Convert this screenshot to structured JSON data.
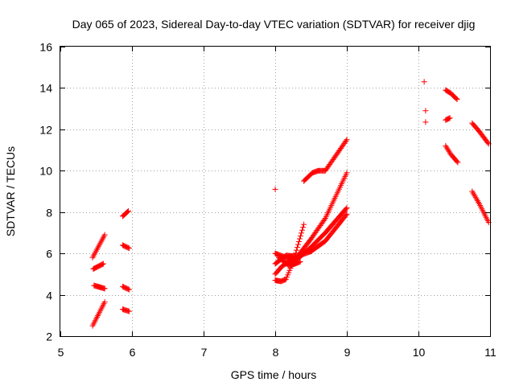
{
  "chart_data": {
    "type": "scatter",
    "title": "Day 065 of 2023, Sidereal Day-to-day VTEC variation (SDTVAR) for receiver djig",
    "xlabel": "GPS time / hours",
    "ylabel": "SDTVAR / TECUs",
    "xlim": [
      5,
      11
    ],
    "ylim": [
      2,
      16
    ],
    "x_ticks": [
      5,
      6,
      7,
      8,
      9,
      10,
      11
    ],
    "y_ticks": [
      2,
      4,
      6,
      8,
      10,
      12,
      14,
      16
    ],
    "x_tick_labels": [
      "5",
      "6",
      "7",
      "8",
      "9",
      "10",
      "11"
    ],
    "y_tick_labels": [
      "2",
      "4",
      "6",
      "8",
      "10",
      "12",
      "14",
      "16"
    ],
    "grid": true,
    "marker": "+",
    "marker_color": "#ff0000",
    "segments": [
      {
        "x": [
          5.45,
          5.62
        ],
        "y": [
          5.8,
          6.9
        ]
      },
      {
        "x": [
          5.46,
          5.6
        ],
        "y": [
          5.25,
          5.5
        ]
      },
      {
        "x": [
          5.47,
          5.62
        ],
        "y": [
          4.45,
          4.3
        ]
      },
      {
        "x": [
          5.45,
          5.62
        ],
        "y": [
          2.5,
          3.65
        ]
      },
      {
        "x": [
          5.87,
          5.95
        ],
        "y": [
          7.8,
          8.05
        ]
      },
      {
        "x": [
          5.87,
          5.96
        ],
        "y": [
          6.4,
          6.25
        ]
      },
      {
        "x": [
          5.87,
          5.96
        ],
        "y": [
          4.4,
          4.25
        ]
      },
      {
        "x": [
          5.87,
          5.96
        ],
        "y": [
          3.3,
          3.2
        ]
      },
      {
        "x": [
          8.0,
          8.0
        ],
        "y": [
          9.1,
          9.1
        ]
      },
      {
        "x": [
          8.4,
          8.52,
          8.6,
          8.7,
          9.0
        ],
        "y": [
          9.5,
          9.9,
          10.0,
          10.0,
          11.5
        ]
      },
      {
        "x": [
          8.0,
          8.1,
          8.2,
          8.3,
          8.5,
          8.7,
          9.0
        ],
        "y": [
          5.0,
          5.4,
          5.6,
          5.8,
          6.7,
          7.7,
          9.9
        ]
      },
      {
        "x": [
          8.0,
          8.15,
          8.3,
          8.5,
          8.7,
          9.0
        ],
        "y": [
          6.0,
          5.8,
          5.7,
          6.3,
          7.0,
          8.2
        ]
      },
      {
        "x": [
          8.0,
          8.15,
          8.3,
          8.5,
          8.7,
          9.0
        ],
        "y": [
          5.5,
          5.9,
          5.85,
          6.1,
          6.6,
          7.9
        ]
      },
      {
        "x": [
          8.0,
          8.08,
          8.15,
          8.25,
          8.4
        ],
        "y": [
          4.7,
          4.65,
          4.75,
          5.6,
          7.4
        ]
      },
      {
        "x": [
          8.05,
          8.2,
          8.35
        ],
        "y": [
          5.8,
          5.4,
          5.6
        ]
      },
      {
        "x": [
          10.08,
          10.08
        ],
        "y": [
          14.3,
          14.3
        ]
      },
      {
        "x": [
          10.1,
          10.1
        ],
        "y": [
          12.9,
          12.9
        ]
      },
      {
        "x": [
          10.1,
          10.1
        ],
        "y": [
          12.35,
          12.35
        ]
      },
      {
        "x": [
          10.38,
          10.45,
          10.54
        ],
        "y": [
          13.9,
          13.75,
          13.45
        ]
      },
      {
        "x": [
          10.38,
          10.44
        ],
        "y": [
          12.45,
          12.55
        ]
      },
      {
        "x": [
          10.38,
          10.45,
          10.55
        ],
        "y": [
          11.2,
          10.8,
          10.4
        ]
      },
      {
        "x": [
          10.75,
          10.85,
          10.98
        ],
        "y": [
          12.3,
          11.9,
          11.3
        ]
      },
      {
        "x": [
          10.75,
          10.85,
          10.98
        ],
        "y": [
          9.0,
          8.4,
          7.5
        ]
      }
    ]
  }
}
